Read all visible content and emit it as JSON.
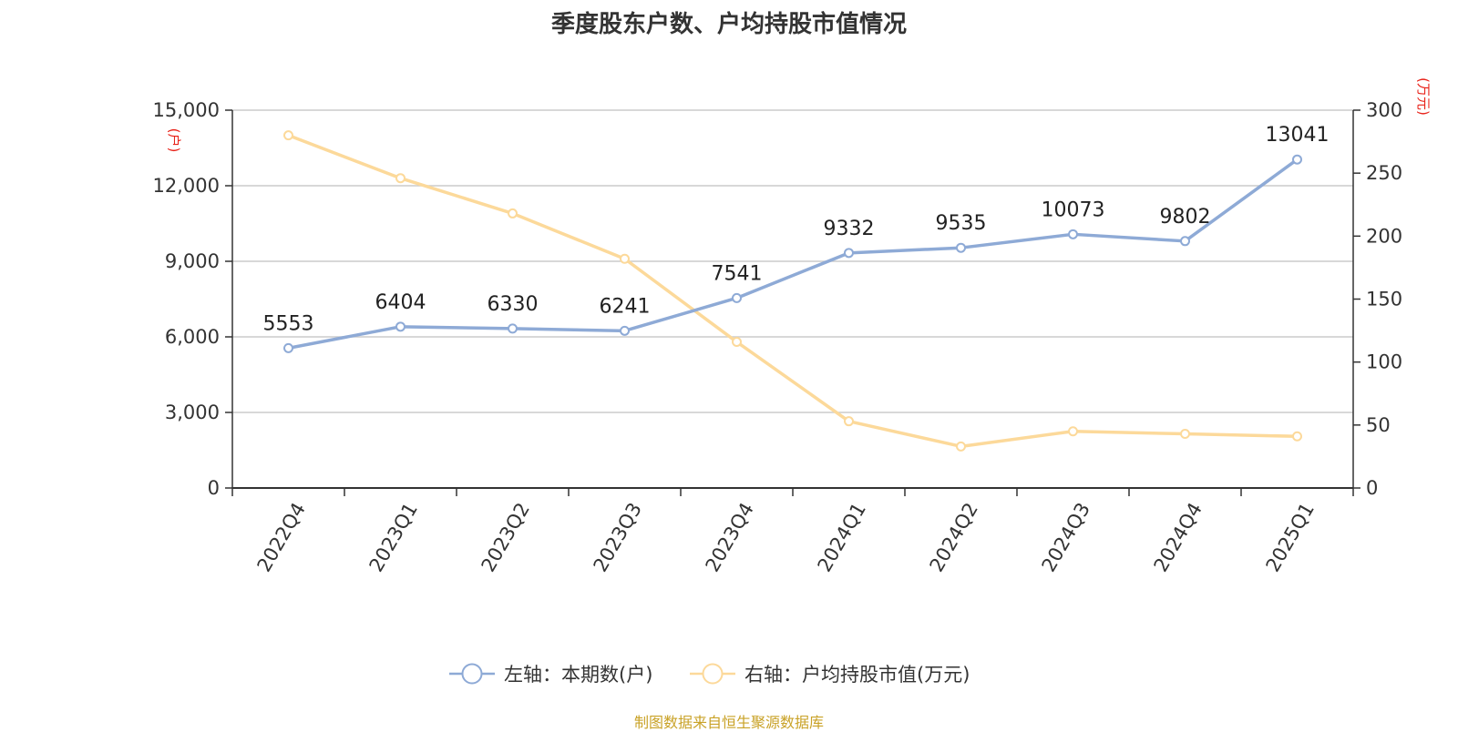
{
  "chart_data": {
    "type": "line",
    "title": "季度股东户数、户均持股市值情况",
    "categories": [
      "2022Q4",
      "2023Q1",
      "2023Q2",
      "2023Q3",
      "2023Q4",
      "2024Q1",
      "2024Q2",
      "2024Q3",
      "2024Q4",
      "2025Q1"
    ],
    "series": [
      {
        "name": "左轴：本期数(户)",
        "axis": "left",
        "color": "#8eaad6",
        "values": [
          5553,
          6404,
          6330,
          6241,
          7541,
          9332,
          9535,
          10073,
          9802,
          13041
        ],
        "show_labels": true
      },
      {
        "name": "右轴：户均持股市值(万元)",
        "axis": "right",
        "color": "#fcd99a",
        "values": [
          280,
          246,
          218,
          182,
          116,
          53,
          33,
          45,
          43,
          41
        ],
        "show_labels": false
      }
    ],
    "y_left": {
      "unit": "(户)",
      "ylim": [
        0,
        15000
      ],
      "ticks": [
        0,
        3000,
        6000,
        9000,
        12000,
        15000
      ],
      "tick_labels": [
        "0",
        "3,000",
        "6,000",
        "9,000",
        "12,000",
        "15,000"
      ]
    },
    "y_right": {
      "unit": "(万元)",
      "ylim": [
        0,
        300
      ],
      "ticks": [
        0,
        50,
        100,
        150,
        200,
        250,
        300
      ],
      "tick_labels": [
        "0",
        "50",
        "100",
        "150",
        "200",
        "250",
        "300"
      ]
    },
    "grid": true,
    "legend_position": "bottom-center",
    "source": "制图数据来自恒生聚源数据库",
    "colors": {
      "unit_label": "#e8231a",
      "source_text": "#c9a227",
      "grid": "#cccccc"
    }
  }
}
